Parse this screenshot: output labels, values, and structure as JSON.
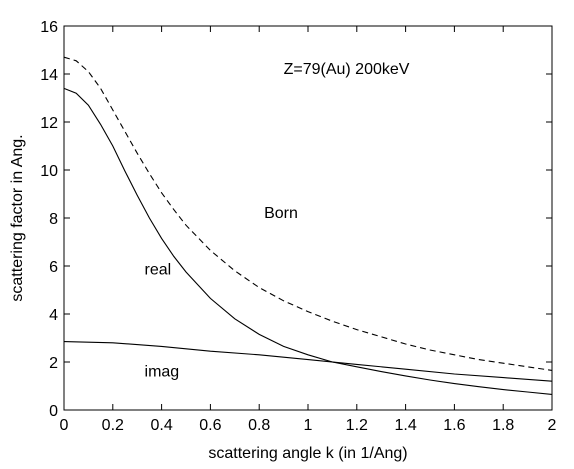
{
  "chart_data": {
    "type": "line",
    "title": "",
    "xlabel": "scattering angle k (in 1/Ang)",
    "ylabel": "scattering factor in Ang.",
    "xlim": [
      0,
      2
    ],
    "ylim": [
      0,
      16
    ],
    "xticks": [
      0,
      0.2,
      0.4,
      0.6,
      0.8,
      1,
      1.2,
      1.4,
      1.6,
      1.8,
      2
    ],
    "xtick_labels": [
      "0",
      "0.2",
      "0.4",
      "0.6",
      "0.8",
      "1",
      "1.2",
      "1.4",
      "1.6",
      "1.8",
      "2"
    ],
    "yticks": [
      0,
      2,
      4,
      6,
      8,
      10,
      12,
      14,
      16
    ],
    "ytick_labels": [
      "0",
      "2",
      "4",
      "6",
      "8",
      "10",
      "12",
      "14",
      "16"
    ],
    "grid": false,
    "legend": "none",
    "annotations": [
      {
        "text": "Z=79(Au)  200keV",
        "x": 0.9,
        "y": 14.0
      },
      {
        "text": "Born",
        "x": 0.82,
        "y": 8.0
      },
      {
        "text": "real",
        "x": 0.33,
        "y": 5.65
      },
      {
        "text": "imag",
        "x": 0.33,
        "y": 1.4
      }
    ],
    "series": [
      {
        "label": "Born",
        "style": "dashed",
        "x": [
          0,
          0.05,
          0.1,
          0.15,
          0.2,
          0.25,
          0.3,
          0.35,
          0.4,
          0.45,
          0.5,
          0.6,
          0.7,
          0.8,
          0.9,
          1.0,
          1.1,
          1.2,
          1.3,
          1.4,
          1.5,
          1.6,
          1.7,
          1.8,
          1.9,
          2.0
        ],
        "y": [
          14.7,
          14.55,
          14.1,
          13.4,
          12.5,
          11.6,
          10.7,
          9.85,
          9.05,
          8.35,
          7.7,
          6.65,
          5.8,
          5.1,
          4.55,
          4.1,
          3.7,
          3.35,
          3.05,
          2.75,
          2.5,
          2.3,
          2.1,
          1.95,
          1.8,
          1.65
        ]
      },
      {
        "label": "real",
        "style": "solid",
        "x": [
          0,
          0.05,
          0.1,
          0.15,
          0.2,
          0.25,
          0.3,
          0.35,
          0.4,
          0.45,
          0.5,
          0.6,
          0.7,
          0.8,
          0.9,
          1.0,
          1.1,
          1.2,
          1.3,
          1.4,
          1.5,
          1.6,
          1.7,
          1.8,
          1.9,
          2.0
        ],
        "y": [
          13.4,
          13.2,
          12.7,
          11.9,
          11.0,
          9.95,
          8.95,
          8.0,
          7.15,
          6.4,
          5.75,
          4.65,
          3.8,
          3.15,
          2.65,
          2.3,
          2.0,
          1.8,
          1.6,
          1.42,
          1.25,
          1.1,
          0.97,
          0.85,
          0.75,
          0.65
        ]
      },
      {
        "label": "imag",
        "style": "solid",
        "x": [
          0,
          0.2,
          0.4,
          0.6,
          0.8,
          1.0,
          1.2,
          1.4,
          1.6,
          1.8,
          2.0
        ],
        "y": [
          2.85,
          2.8,
          2.65,
          2.45,
          2.3,
          2.1,
          1.9,
          1.7,
          1.5,
          1.35,
          1.2
        ]
      }
    ]
  }
}
